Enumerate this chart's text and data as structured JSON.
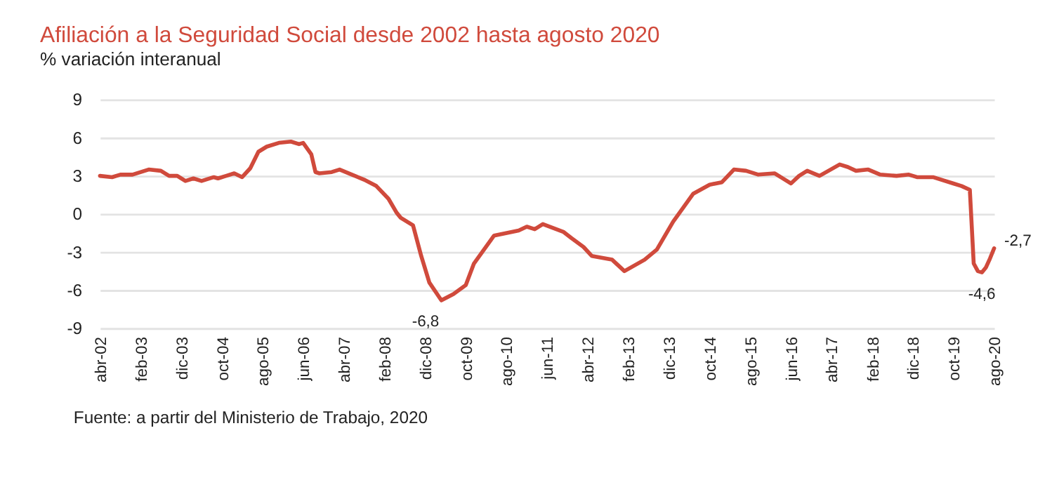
{
  "chart_data": {
    "type": "line",
    "title": "Afiliación a la Seguridad Social desde 2002 hasta agosto 2020",
    "subtitle": "% variación interanual",
    "x": [
      "2002-04",
      "2002-07",
      "2002-09",
      "2002-12",
      "2003-04",
      "2003-07",
      "2003-09",
      "2003-11",
      "2004-01",
      "2004-03",
      "2004-05",
      "2004-08",
      "2004-09",
      "2004-11",
      "2005-01",
      "2005-03",
      "2005-05",
      "2005-07",
      "2005-09",
      "2005-12",
      "2006-03",
      "2006-05",
      "2006-06",
      "2006-08",
      "2006-09",
      "2006-10",
      "2007-01",
      "2007-03",
      "2007-06",
      "2007-09",
      "2007-12",
      "2008-03",
      "2008-05",
      "2008-06",
      "2008-09",
      "2008-11",
      "2009-01",
      "2009-04",
      "2009-07",
      "2009-10",
      "2009-12",
      "2010-05",
      "2010-11",
      "2011-01",
      "2011-03",
      "2011-05",
      "2011-10",
      "2011-12",
      "2012-03",
      "2012-05",
      "2012-10",
      "2013-01",
      "2013-06",
      "2013-09",
      "2014-01",
      "2014-06",
      "2014-10",
      "2015-01",
      "2015-04",
      "2015-07",
      "2015-10",
      "2016-02",
      "2016-06",
      "2016-08",
      "2016-10",
      "2017-01",
      "2017-06",
      "2017-08",
      "2017-10",
      "2018-01",
      "2018-04",
      "2018-08",
      "2018-11",
      "2019-01",
      "2019-05",
      "2019-10",
      "2019-12",
      "2020-02",
      "2020-03",
      "2020-04",
      "2020-05",
      "2020-06",
      "2020-07",
      "2020-08"
    ],
    "series": [
      {
        "color": "#d04a3c",
        "values": [
          3.0,
          2.9,
          3.1,
          3.1,
          3.5,
          3.4,
          3.0,
          3.0,
          2.6,
          2.8,
          2.6,
          2.9,
          2.8,
          3.0,
          3.2,
          2.9,
          3.6,
          4.9,
          5.3,
          5.6,
          5.7,
          5.5,
          5.6,
          4.7,
          3.3,
          3.2,
          3.3,
          3.5,
          3.1,
          2.7,
          2.2,
          1.2,
          0.1,
          -0.3,
          -0.9,
          -3.3,
          -5.4,
          -6.8,
          -6.3,
          -5.6,
          -3.9,
          -1.7,
          -1.3,
          -1.0,
          -1.2,
          -0.8,
          -1.4,
          -1.9,
          -2.6,
          -3.3,
          -3.6,
          -4.5,
          -3.6,
          -2.8,
          -0.6,
          1.6,
          2.3,
          2.5,
          3.5,
          3.4,
          3.1,
          3.2,
          2.4,
          3.0,
          3.4,
          3.0,
          3.9,
          3.7,
          3.4,
          3.5,
          3.1,
          3.0,
          3.1,
          2.9,
          2.9,
          2.4,
          2.2,
          1.9,
          -3.9,
          -4.5,
          -4.6,
          -4.2,
          -3.5,
          -2.7
        ]
      }
    ],
    "xlim": [
      "2002-04",
      "2020-08"
    ],
    "xticks": [
      {
        "value": "2002-04",
        "label": "abr-02"
      },
      {
        "value": "2003-02",
        "label": "feb-03"
      },
      {
        "value": "2003-12",
        "label": "dic-03"
      },
      {
        "value": "2004-10",
        "label": "oct-04"
      },
      {
        "value": "2005-08",
        "label": "ago-05"
      },
      {
        "value": "2006-06",
        "label": "jun-06"
      },
      {
        "value": "2007-04",
        "label": "abr-07"
      },
      {
        "value": "2008-02",
        "label": "feb-08"
      },
      {
        "value": "2008-12",
        "label": "dic-08"
      },
      {
        "value": "2009-10",
        "label": "oct-09"
      },
      {
        "value": "2010-08",
        "label": "ago-10"
      },
      {
        "value": "2011-06",
        "label": "jun-11"
      },
      {
        "value": "2012-04",
        "label": "abr-12"
      },
      {
        "value": "2013-02",
        "label": "feb-13"
      },
      {
        "value": "2013-12",
        "label": "dic-13"
      },
      {
        "value": "2014-10",
        "label": "oct-14"
      },
      {
        "value": "2015-08",
        "label": "ago-15"
      },
      {
        "value": "2016-06",
        "label": "jun-16"
      },
      {
        "value": "2017-04",
        "label": "abr-17"
      },
      {
        "value": "2018-02",
        "label": "feb-18"
      },
      {
        "value": "2018-12",
        "label": "dic-18"
      },
      {
        "value": "2019-10",
        "label": "oct-19"
      },
      {
        "value": "2020-08",
        "label": "ago-20"
      }
    ],
    "ylim": [
      -9,
      9
    ],
    "yticks": [
      -9,
      -6,
      -3,
      0,
      3,
      6,
      9
    ],
    "grid": "y",
    "marker": "none",
    "line_style": "solid",
    "annotations": [
      {
        "text": "-6,8",
        "x": "2009-04",
        "y": -6.8
      },
      {
        "text": "-4,6",
        "x": "2020-05",
        "y": -4.6
      },
      {
        "text": "-2,7",
        "x": "2020-08",
        "y": -2.7
      },
      "Fuente: a partir del Ministerio de Trabajo, 2020"
    ]
  }
}
